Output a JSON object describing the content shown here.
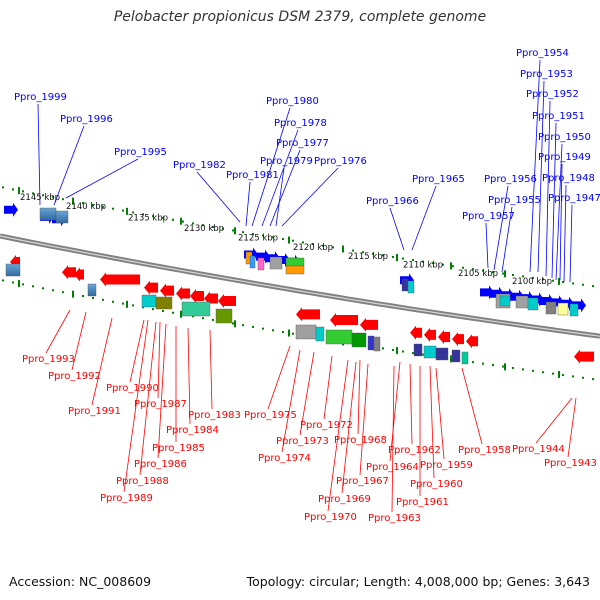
{
  "title": "Pelobacter propionicus DSM 2379, complete genome",
  "footer": {
    "accession": "Accession: NC_008609",
    "info": "Topology: circular; Length: 4,008,000 bp; Genes: 3,643"
  },
  "colors": {
    "plus_strand": "#0000ff",
    "minus_strand": "#ff0000",
    "backbone": "#808080",
    "ticks": "#008000"
  },
  "kbp_labels": [
    "2145 kbp",
    "2140 kbp",
    "2135 kbp",
    "2130 kbp",
    "2125 kbp",
    "2120 kbp",
    "2115 kbp",
    "2110 kbp",
    "2105 kbp",
    "2100 kbp"
  ],
  "top_genes": [
    "Ppro_1999",
    "Ppro_1996",
    "Ppro_1995",
    "Ppro_1982",
    "Ppro_1981",
    "Ppro_1980",
    "Ppro_1978",
    "Ppro_1977",
    "Ppro_1979",
    "Ppro_1976",
    "Ppro_1966",
    "Ppro_1965",
    "Ppro_1957",
    "Ppro_1956",
    "Ppro_1955",
    "Ppro_1954",
    "Ppro_1953",
    "Ppro_1952",
    "Ppro_1951",
    "Ppro_1950",
    "Ppro_1949",
    "Ppro_1948",
    "Ppro_1947"
  ],
  "bottom_genes": [
    "Ppro_1993",
    "Ppro_1992",
    "Ppro_1991",
    "Ppro_1990",
    "Ppro_1987",
    "Ppro_1983",
    "Ppro_1984",
    "Ppro_1985",
    "Ppro_1986",
    "Ppro_1988",
    "Ppro_1989",
    "Ppro_1975",
    "Ppro_1972",
    "Ppro_1973",
    "Ppro_1974",
    "Ppro_1968",
    "Ppro_1967",
    "Ppro_1969",
    "Ppro_1970",
    "Ppro_1962",
    "Ppro_1964",
    "Ppro_1959",
    "Ppro_1961",
    "Ppro_1960",
    "Ppro_1963",
    "Ppro_1958",
    "Ppro_1944",
    "Ppro_1943"
  ]
}
